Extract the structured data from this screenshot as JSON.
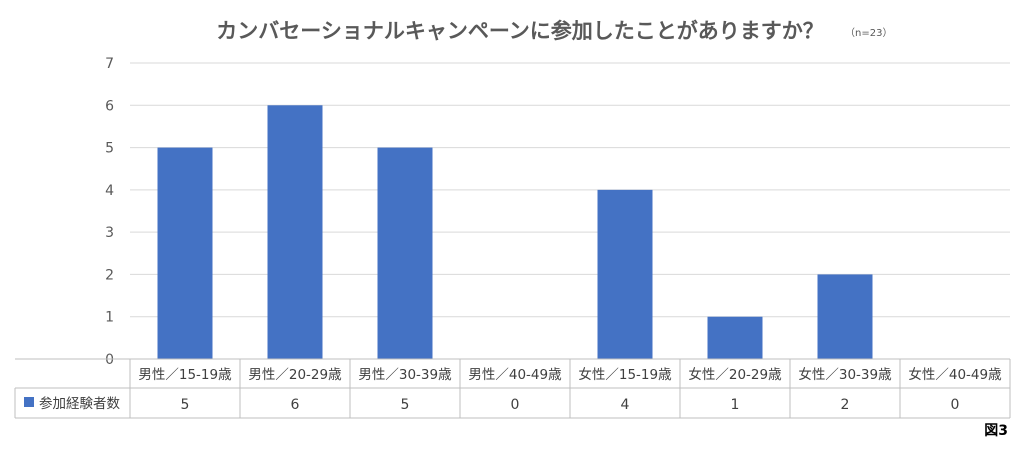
{
  "chart_data": {
    "type": "bar",
    "title": "カンバセーショナルキャンペーンに参加したことがありますか？",
    "note": "（n=23）",
    "categories": [
      "男性／15-19歳",
      "男性／20-29歳",
      "男性／30-39歳",
      "男性／40-49歳",
      "女性／15-19歳",
      "女性／20-29歳",
      "女性／30-39歳",
      "女性／40-49歳"
    ],
    "series": [
      {
        "name": "参加経験者数",
        "values": [
          5,
          6,
          5,
          0,
          4,
          1,
          2,
          0
        ],
        "color": "#4472C4"
      }
    ],
    "ylim": [
      0,
      7
    ],
    "yticks": [
      "0",
      "1",
      "2",
      "3",
      "4",
      "5",
      "6",
      "7"
    ],
    "grid": true,
    "legend": "data-table"
  },
  "figure_label": "図3"
}
